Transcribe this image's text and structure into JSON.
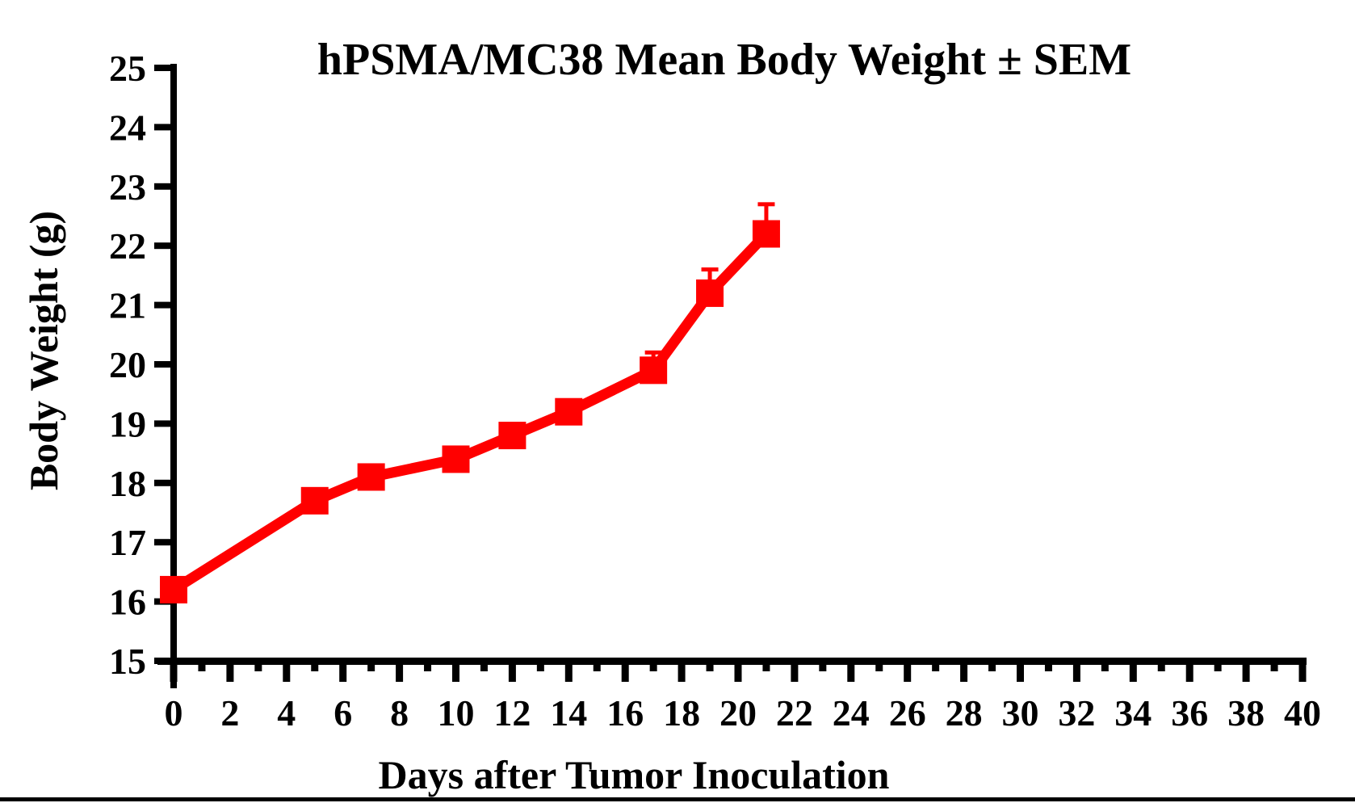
{
  "figure": {
    "title": "hPSMA/MC38 Mean Body Weight ± SEM",
    "x_axis_title": "Days after Tumor Inoculation",
    "y_axis_title": "Body Weight (g)"
  },
  "chart_data": {
    "type": "line",
    "title": "hPSMA/MC38 Mean Body Weight ± SEM",
    "xlabel": "Days after Tumor Inoculation",
    "ylabel": "Body Weight (g)",
    "series": [
      {
        "name": "hPSMA/MC38 mean body weight",
        "x": [
          0,
          5,
          7,
          10,
          12,
          14,
          17,
          19,
          21
        ],
        "y": [
          16.2,
          17.7,
          18.1,
          18.4,
          18.8,
          19.2,
          19.9,
          21.2,
          22.2
        ],
        "sem_upper": [
          0,
          0,
          0,
          0,
          0,
          0,
          0.3,
          0.4,
          0.5
        ],
        "marker": "filled-square",
        "color": "#FF0000"
      }
    ],
    "xlim": [
      0,
      40
    ],
    "ylim": [
      15,
      25
    ],
    "x_tick_labels": [
      0,
      2,
      4,
      6,
      8,
      10,
      12,
      14,
      16,
      18,
      20,
      22,
      24,
      26,
      28,
      30,
      32,
      34,
      36,
      38,
      40
    ],
    "x_minor_tick_step": 1,
    "y_tick_labels": [
      15,
      16,
      17,
      18,
      19,
      20,
      21,
      22,
      23,
      24,
      25
    ],
    "grid": false,
    "legend_position": "none",
    "axis_color": "#000000",
    "background_color": "#FFFFFF"
  }
}
